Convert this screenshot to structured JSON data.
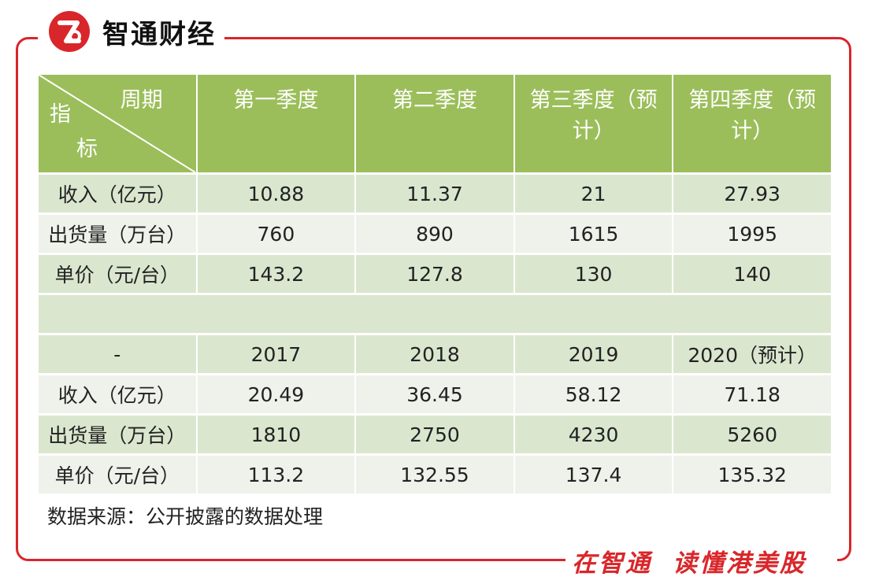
{
  "brand": {
    "logo_text": "智通财经",
    "slogan_left": "在智通",
    "slogan_right": "读懂港美股",
    "accent_color": "#d9262a",
    "header_color": "#9bbe5a"
  },
  "table": {
    "corner": {
      "top_right": "周期",
      "left_1": "指",
      "left_2": "标"
    },
    "quarter_headers": [
      "第一季度",
      "第二季度",
      "第三季度（预计）",
      "第四季度（预计）"
    ],
    "quarter_rows": [
      {
        "label": "收入（亿元）",
        "values": [
          "10.88",
          "11.37",
          "21",
          "27.93"
        ]
      },
      {
        "label": "出货量（万台）",
        "values": [
          "760",
          "890",
          "1615",
          "1995"
        ]
      },
      {
        "label": "单价（元/台）",
        "values": [
          "143.2",
          "127.8",
          "130",
          "140"
        ]
      }
    ],
    "year_header": {
      "label": "-",
      "values": [
        "2017",
        "2018",
        "2019",
        "2020（预计）"
      ]
    },
    "year_rows": [
      {
        "label": "收入（亿元）",
        "values": [
          "20.49",
          "36.45",
          "58.12",
          "71.18"
        ]
      },
      {
        "label": "出货量（万台）",
        "values": [
          "1810",
          "2750",
          "4230",
          "5260"
        ]
      },
      {
        "label": "单价（元/台）",
        "values": [
          "113.2",
          "132.55",
          "137.4",
          "135.32"
        ]
      }
    ]
  },
  "source_note": "数据来源：公开披露的数据处理"
}
